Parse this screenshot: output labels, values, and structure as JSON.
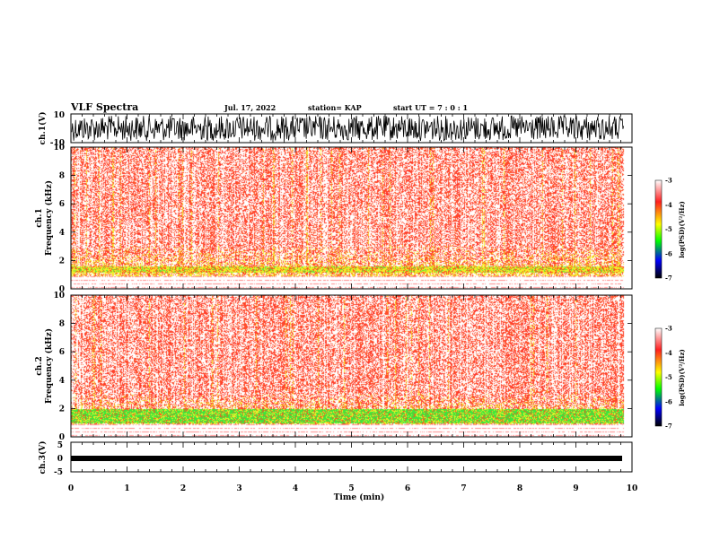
{
  "header": {
    "title": "VLF Spectra",
    "date": "Jul. 17, 2022",
    "station": "station= KAP",
    "start": "start UT =  7 : 0  : 1"
  },
  "axes": {
    "xlabel": "Time (min)",
    "xticks": [
      "0",
      "1",
      "2",
      "3",
      "4",
      "5",
      "6",
      "7",
      "8",
      "9",
      "10"
    ],
    "ch1_wave_label": "ch.1(V)",
    "ch1_wave_ticks": [
      "10",
      "-10"
    ],
    "ch1_spec_label_top": "ch.1",
    "ch1_spec_label": "Frequency (kHz)",
    "ch2_spec_label_top": "ch.2",
    "ch2_spec_label": "Frequency (kHz)",
    "freq_ticks": [
      "10",
      "8",
      "6",
      "4",
      "2",
      "0"
    ],
    "ch3_label": "ch.3(V)",
    "ch3_ticks": [
      "5",
      "0",
      "-5"
    ]
  },
  "colorbar": {
    "label": "log(PSD)(V²/Hz)",
    "ticks": [
      "-3",
      "-4",
      "-5",
      "-6",
      "-7"
    ],
    "colors": [
      "#ffffff",
      "#ff0000",
      "#ffff00",
      "#00ff00",
      "#0000ff",
      "#000000"
    ]
  },
  "chart_data": {
    "type": "heatmap",
    "title": "VLF Spectra",
    "xlabel": "Time (min)",
    "xlim": [
      0,
      10
    ],
    "data_end_min": 9.85,
    "panels": [
      {
        "name": "ch.1(V)",
        "kind": "waveform",
        "ylim": [
          -10,
          10
        ],
        "ylabel": "ch.1(V)"
      },
      {
        "name": "ch.1",
        "kind": "spectrogram",
        "ylabel": "Frequency (kHz)",
        "ylim": [
          0,
          10
        ],
        "colorbar_range": [
          -7,
          -3
        ],
        "colorbar_label": "log(PSD)(V²/Hz)"
      },
      {
        "name": "ch.2",
        "kind": "spectrogram",
        "ylabel": "Frequency (kHz)",
        "ylim": [
          0,
          10
        ],
        "colorbar_range": [
          -7,
          -3
        ],
        "colorbar_label": "log(PSD)(V²/Hz)"
      },
      {
        "name": "ch.3(V)",
        "kind": "waveform",
        "ylim": [
          -5,
          5
        ],
        "ylabel": "ch.3(V)"
      }
    ]
  }
}
